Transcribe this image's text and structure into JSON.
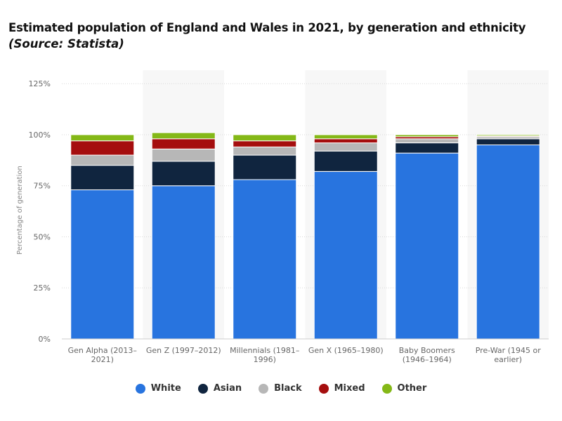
{
  "title": "Estimated population of England and Wales in 2021, by generation and ethnicity",
  "source": "(Source: Statista)",
  "chart_data": {
    "type": "bar",
    "stacked": true,
    "categories": [
      [
        "Gen Alpha (2013–",
        "2021)"
      ],
      [
        "Gen Z (1997–2012)"
      ],
      [
        "Millennials (1981–",
        "1996)"
      ],
      [
        "Gen X (1965–1980)"
      ],
      [
        "Baby Boomers",
        "(1946–1964)"
      ],
      [
        "Pre-War (1945 or",
        "earlier)"
      ]
    ],
    "series": [
      {
        "name": "White",
        "color": "#2874df",
        "values": [
          73,
          75,
          78,
          82,
          91,
          95
        ]
      },
      {
        "name": "Asian",
        "color": "#10253f",
        "values": [
          12,
          12,
          12,
          10,
          5,
          3
        ]
      },
      {
        "name": "Black",
        "color": "#b7b7b7",
        "values": [
          5,
          6,
          4,
          4,
          2,
          1
        ]
      },
      {
        "name": "Mixed",
        "color": "#a50e0e",
        "values": [
          7,
          5,
          3,
          2,
          1,
          0.4
        ]
      },
      {
        "name": "Other",
        "color": "#84b817",
        "values": [
          3,
          3,
          3,
          2,
          1,
          0.6
        ]
      }
    ],
    "ylabel": "Percentage of generation",
    "xlabel": "",
    "ylim": [
      0,
      125
    ],
    "yticks": [
      0,
      25,
      50,
      75,
      100,
      125
    ],
    "ytick_labels": [
      "0%",
      "25%",
      "50%",
      "75%",
      "100%",
      "125%"
    ],
    "grid": true,
    "legend_position": "bottom"
  }
}
